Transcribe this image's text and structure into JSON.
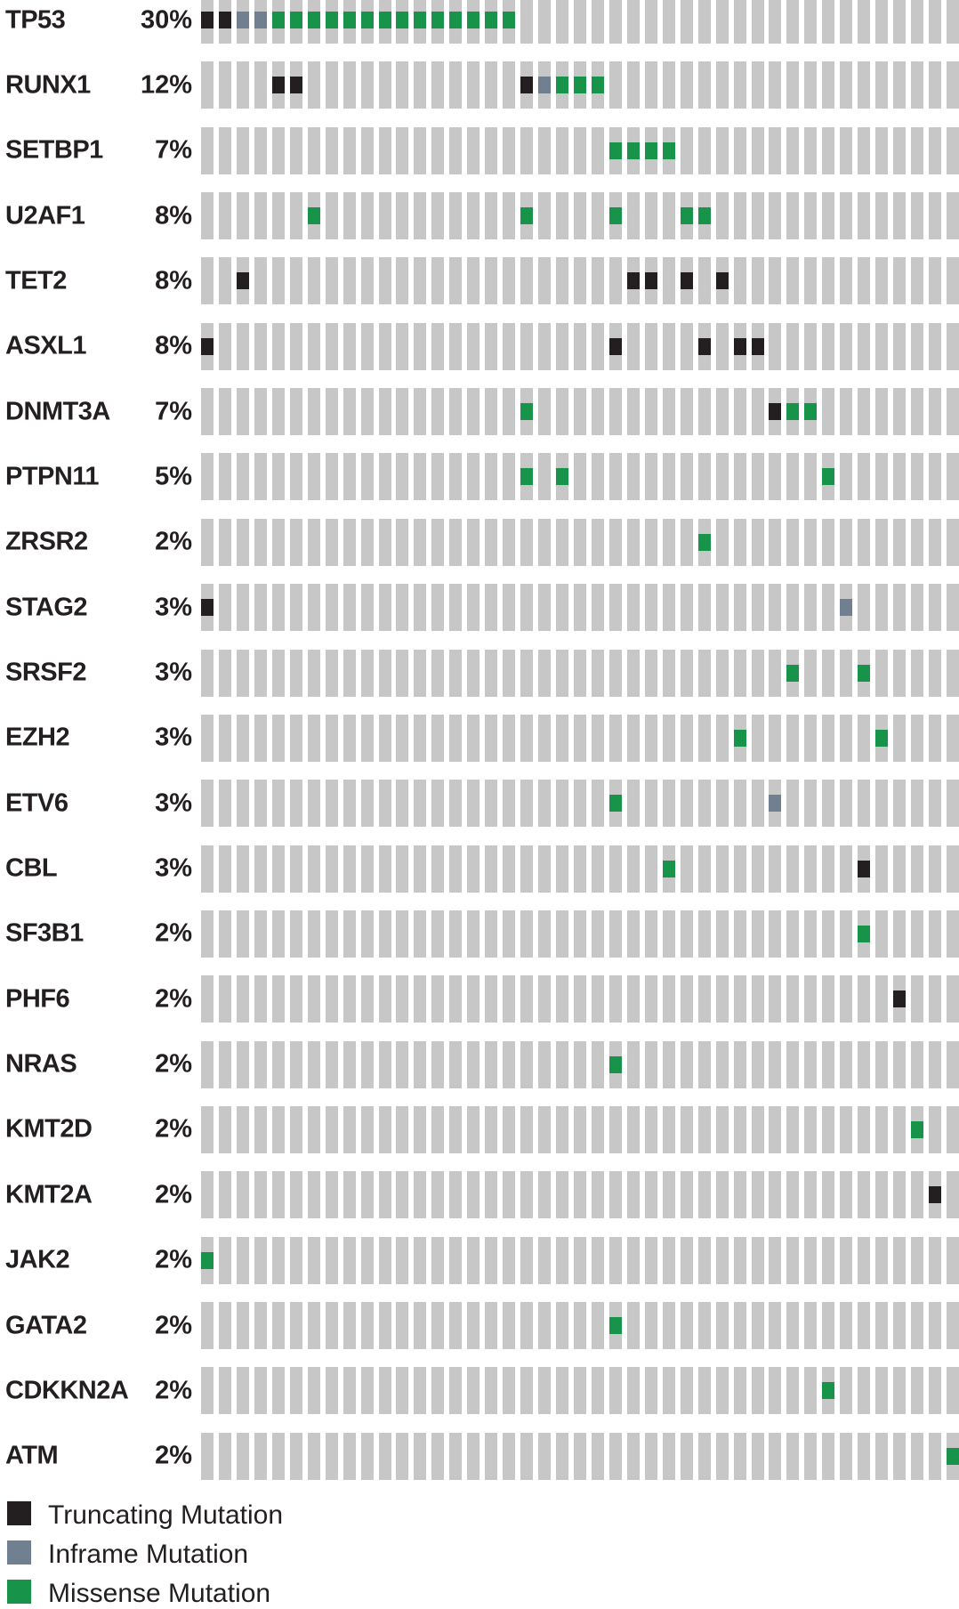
{
  "chart_data": {
    "type": "heatmap",
    "subtype": "oncoprint-mutation-matrix",
    "n_sample_columns": 43,
    "grid_on": false,
    "legend_position": "bottom-left",
    "colors": {
      "background_bar": "#c7c7c7",
      "truncating": "#231f20",
      "inframe": "#708090",
      "missense": "#17944a",
      "text": "#231f20"
    },
    "legend": [
      {
        "type": "truncating",
        "label": "Truncating Mutation",
        "color": "#231f20"
      },
      {
        "type": "inframe",
        "label": "Inframe Mutation",
        "color": "#708090"
      },
      {
        "type": "missense",
        "label": "Missense Mutation",
        "color": "#17944a"
      }
    ],
    "rows": [
      {
        "gene": "TP53",
        "frequency": "30%",
        "mutations": [
          {
            "column": 1,
            "type": "truncating"
          },
          {
            "column": 2,
            "type": "truncating"
          },
          {
            "column": 3,
            "type": "inframe"
          },
          {
            "column": 4,
            "type": "inframe"
          },
          {
            "column": 5,
            "type": "missense"
          },
          {
            "column": 6,
            "type": "missense"
          },
          {
            "column": 7,
            "type": "missense"
          },
          {
            "column": 8,
            "type": "missense"
          },
          {
            "column": 9,
            "type": "missense"
          },
          {
            "column": 10,
            "type": "missense"
          },
          {
            "column": 11,
            "type": "missense"
          },
          {
            "column": 12,
            "type": "missense"
          },
          {
            "column": 13,
            "type": "missense"
          },
          {
            "column": 14,
            "type": "missense"
          },
          {
            "column": 15,
            "type": "missense"
          },
          {
            "column": 16,
            "type": "missense"
          },
          {
            "column": 17,
            "type": "missense"
          },
          {
            "column": 18,
            "type": "missense"
          }
        ]
      },
      {
        "gene": "RUNX1",
        "frequency": "12%",
        "mutations": [
          {
            "column": 5,
            "type": "truncating"
          },
          {
            "column": 6,
            "type": "truncating"
          },
          {
            "column": 19,
            "type": "truncating"
          },
          {
            "column": 20,
            "type": "inframe"
          },
          {
            "column": 21,
            "type": "missense"
          },
          {
            "column": 22,
            "type": "missense"
          },
          {
            "column": 23,
            "type": "missense"
          }
        ]
      },
      {
        "gene": "SETBP1",
        "frequency": "7%",
        "mutations": [
          {
            "column": 24,
            "type": "missense"
          },
          {
            "column": 25,
            "type": "missense"
          },
          {
            "column": 26,
            "type": "missense"
          },
          {
            "column": 27,
            "type": "missense"
          }
        ]
      },
      {
        "gene": "U2AF1",
        "frequency": "8%",
        "mutations": [
          {
            "column": 7,
            "type": "missense"
          },
          {
            "column": 19,
            "type": "missense"
          },
          {
            "column": 24,
            "type": "missense"
          },
          {
            "column": 28,
            "type": "missense"
          },
          {
            "column": 29,
            "type": "missense"
          }
        ]
      },
      {
        "gene": "TET2",
        "frequency": "8%",
        "mutations": [
          {
            "column": 3,
            "type": "truncating"
          },
          {
            "column": 25,
            "type": "truncating"
          },
          {
            "column": 26,
            "type": "truncating"
          },
          {
            "column": 28,
            "type": "truncating"
          },
          {
            "column": 30,
            "type": "truncating"
          }
        ]
      },
      {
        "gene": "ASXL1",
        "frequency": "8%",
        "mutations": [
          {
            "column": 1,
            "type": "truncating"
          },
          {
            "column": 24,
            "type": "truncating"
          },
          {
            "column": 29,
            "type": "truncating"
          },
          {
            "column": 31,
            "type": "truncating"
          },
          {
            "column": 32,
            "type": "truncating"
          }
        ]
      },
      {
        "gene": "DNMT3A",
        "frequency": "7%",
        "mutations": [
          {
            "column": 19,
            "type": "missense"
          },
          {
            "column": 33,
            "type": "truncating"
          },
          {
            "column": 34,
            "type": "missense"
          },
          {
            "column": 35,
            "type": "missense"
          }
        ]
      },
      {
        "gene": "PTPN11",
        "frequency": "5%",
        "mutations": [
          {
            "column": 19,
            "type": "missense"
          },
          {
            "column": 21,
            "type": "missense"
          },
          {
            "column": 36,
            "type": "missense"
          }
        ]
      },
      {
        "gene": "ZRSR2",
        "frequency": "2%",
        "mutations": [
          {
            "column": 29,
            "type": "missense"
          }
        ]
      },
      {
        "gene": "STAG2",
        "frequency": "3%",
        "mutations": [
          {
            "column": 1,
            "type": "truncating"
          },
          {
            "column": 37,
            "type": "inframe"
          }
        ]
      },
      {
        "gene": "SRSF2",
        "frequency": "3%",
        "mutations": [
          {
            "column": 34,
            "type": "missense"
          },
          {
            "column": 38,
            "type": "missense"
          }
        ]
      },
      {
        "gene": "EZH2",
        "frequency": "3%",
        "mutations": [
          {
            "column": 31,
            "type": "missense"
          },
          {
            "column": 39,
            "type": "missense"
          }
        ]
      },
      {
        "gene": "ETV6",
        "frequency": "3%",
        "mutations": [
          {
            "column": 24,
            "type": "missense"
          },
          {
            "column": 33,
            "type": "inframe"
          }
        ]
      },
      {
        "gene": "CBL",
        "frequency": "3%",
        "mutations": [
          {
            "column": 27,
            "type": "missense"
          },
          {
            "column": 38,
            "type": "truncating"
          }
        ]
      },
      {
        "gene": "SF3B1",
        "frequency": "2%",
        "mutations": [
          {
            "column": 38,
            "type": "missense"
          }
        ]
      },
      {
        "gene": "PHF6",
        "frequency": "2%",
        "mutations": [
          {
            "column": 40,
            "type": "truncating"
          }
        ]
      },
      {
        "gene": "NRAS",
        "frequency": "2%",
        "mutations": [
          {
            "column": 24,
            "type": "missense"
          }
        ]
      },
      {
        "gene": "KMT2D",
        "frequency": "2%",
        "mutations": [
          {
            "column": 41,
            "type": "missense"
          }
        ]
      },
      {
        "gene": "KMT2A",
        "frequency": "2%",
        "mutations": [
          {
            "column": 42,
            "type": "truncating"
          }
        ]
      },
      {
        "gene": "JAK2",
        "frequency": "2%",
        "mutations": [
          {
            "column": 1,
            "type": "missense"
          }
        ]
      },
      {
        "gene": "GATA2",
        "frequency": "2%",
        "mutations": [
          {
            "column": 24,
            "type": "missense"
          }
        ]
      },
      {
        "gene": "CDKKN2A",
        "frequency": "2%",
        "mutations": [
          {
            "column": 36,
            "type": "missense"
          }
        ]
      },
      {
        "gene": "ATM",
        "frequency": "2%",
        "mutations": [
          {
            "column": 43,
            "type": "missense"
          }
        ]
      }
    ]
  }
}
